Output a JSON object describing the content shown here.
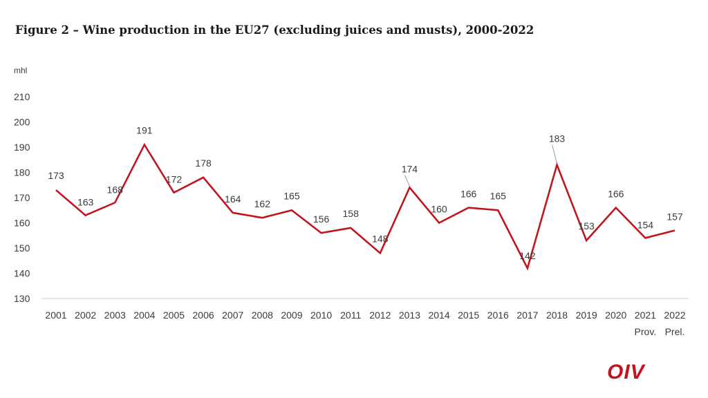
{
  "title": "Figure 2 – Wine production in the EU27 (excluding juices and musts), 2000-2022",
  "logo": "OIV",
  "colors": {
    "line": "#c0151f",
    "axis": "#cfcfcf",
    "text": "#3a3a3a"
  },
  "chart_data": {
    "type": "line",
    "title": "Figure 2 – Wine production in the EU27 (excluding juices and musts), 2000-2022",
    "ylabel": "mhl",
    "xlabel": "",
    "ylim": [
      130,
      215
    ],
    "yticks": [
      130,
      140,
      150,
      160,
      170,
      180,
      190,
      200,
      210
    ],
    "grid": false,
    "categories": [
      "2001",
      "2002",
      "2003",
      "2004",
      "2005",
      "2006",
      "2007",
      "2008",
      "2009",
      "2010",
      "2011",
      "2012",
      "2013",
      "2014",
      "2015",
      "2016",
      "2017",
      "2018",
      "2019",
      "2020",
      "2021",
      "2022"
    ],
    "category_sublabels": [
      "",
      "",
      "",
      "",
      "",
      "",
      "",
      "",
      "",
      "",
      "",
      "",
      "",
      "",
      "",
      "",
      "",
      "",
      "",
      "",
      "Prov.",
      "Prel."
    ],
    "series": [
      {
        "name": "Wine production",
        "values": [
          173,
          163,
          168,
          191,
          172,
          178,
          164,
          162,
          165,
          156,
          158,
          148,
          174,
          160,
          166,
          165,
          142,
          183,
          153,
          166,
          154,
          157
        ]
      }
    ],
    "data_labels": [
      "173",
      "163",
      "168",
      "191",
      "172",
      "178",
      "164",
      "162",
      "165",
      "156",
      "158",
      "148",
      "174",
      "160",
      "166",
      "165",
      "142",
      "183",
      "153",
      "166",
      "154",
      "157"
    ]
  }
}
